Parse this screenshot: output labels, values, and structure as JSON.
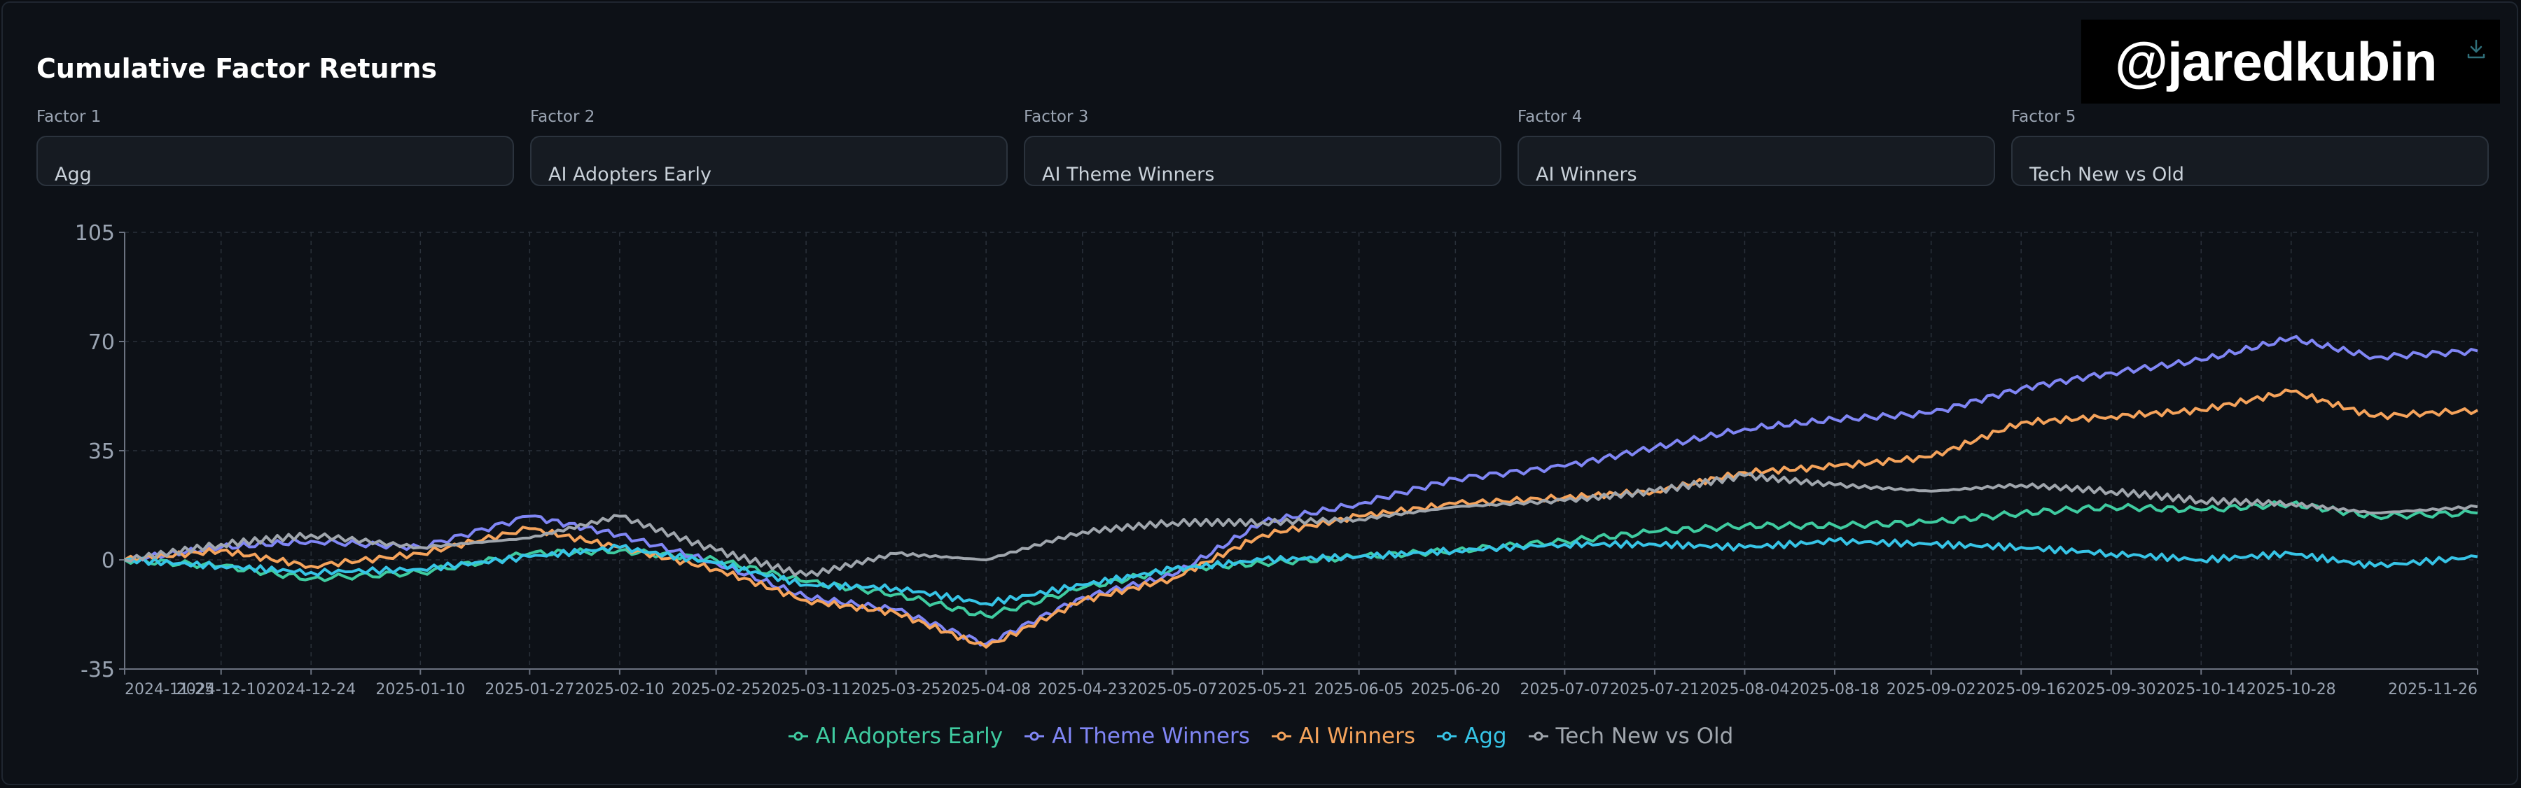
{
  "card": {
    "title": "Cumulative Factor Returns"
  },
  "watermark": "@jaredkubin",
  "factors": [
    {
      "label": "Factor 1",
      "value": "Agg"
    },
    {
      "label": "Factor 2",
      "value": "AI Adopters Early"
    },
    {
      "label": "Factor 3",
      "value": "AI Theme Winners"
    },
    {
      "label": "Factor 4",
      "value": "AI Winners"
    },
    {
      "label": "Factor 5",
      "value": "Tech New vs Old"
    }
  ],
  "icons": {
    "download": "download-icon"
  },
  "chart_data": {
    "type": "line",
    "title": "",
    "xlabel": "",
    "ylabel": "",
    "x_start": "2024-11-25",
    "x_end": "2025-11-26",
    "x_ticks": [
      "2024-11-25",
      "2024-12-10",
      "2024-12-24",
      "2025-01-10",
      "2025-01-27",
      "2025-02-10",
      "2025-02-25",
      "2025-03-11",
      "2025-03-25",
      "2025-04-08",
      "2025-04-23",
      "2025-05-07",
      "2025-05-21",
      "2025-06-05",
      "2025-06-20",
      "2025-07-07",
      "2025-07-21",
      "2025-08-04",
      "2025-08-18",
      "2025-09-02",
      "2025-09-16",
      "2025-09-30",
      "2025-10-14",
      "2025-10-28",
      "2025-11-26"
    ],
    "y_ticks": [
      105,
      70,
      35,
      0,
      -35
    ],
    "ylim": [
      -35,
      105
    ],
    "grid": true,
    "legend_position": "bottom",
    "dates": [
      "2024-11-25",
      "2024-12-10",
      "2024-12-24",
      "2025-01-10",
      "2025-01-27",
      "2025-02-10",
      "2025-02-25",
      "2025-03-11",
      "2025-03-25",
      "2025-04-08",
      "2025-04-23",
      "2025-05-07",
      "2025-05-21",
      "2025-06-05",
      "2025-06-20",
      "2025-07-07",
      "2025-07-21",
      "2025-08-04",
      "2025-08-18",
      "2025-09-02",
      "2025-09-16",
      "2025-09-30",
      "2025-10-14",
      "2025-10-28",
      "2025-11-10",
      "2025-11-26"
    ],
    "series": [
      {
        "name": "AI Adopters Early",
        "color": "#3fcba0",
        "values": [
          0,
          -2,
          -6,
          -4,
          2,
          3,
          0,
          -7,
          -11,
          -18,
          -9,
          -3,
          -1,
          1,
          3,
          6,
          9,
          11,
          11,
          12,
          15,
          17,
          16,
          18,
          14,
          15
        ]
      },
      {
        "name": "AI Theme Winners",
        "color": "#8086f5",
        "values": [
          0,
          4,
          6,
          4,
          14,
          8,
          -1,
          -12,
          -16,
          -27,
          -12,
          -5,
          12,
          18,
          26,
          30,
          36,
          42,
          45,
          47,
          55,
          60,
          64,
          71,
          65,
          67
        ]
      },
      {
        "name": "AI Winners",
        "color": "#f5a35b",
        "values": [
          0,
          3,
          -2,
          2,
          10,
          4,
          -3,
          -13,
          -17,
          -28,
          -13,
          -6,
          8,
          14,
          18,
          20,
          22,
          28,
          30,
          33,
          44,
          46,
          48,
          54,
          46,
          48
        ]
      },
      {
        "name": "Agg",
        "color": "#37c4e6",
        "values": [
          0,
          -2,
          -4,
          -3,
          1,
          4,
          -1,
          -8,
          -9,
          -14,
          -8,
          -3,
          0,
          1,
          3,
          5,
          5,
          4,
          6,
          5,
          4,
          2,
          0,
          2,
          -2,
          1
        ]
      },
      {
        "name": "Tech New vs Old",
        "color": "#a0a6ad",
        "values": [
          0,
          5,
          8,
          4,
          7,
          14,
          3,
          -5,
          2,
          0,
          9,
          12,
          12,
          13,
          17,
          19,
          22,
          27,
          24,
          22,
          24,
          22,
          19,
          18,
          15,
          17
        ]
      }
    ]
  }
}
